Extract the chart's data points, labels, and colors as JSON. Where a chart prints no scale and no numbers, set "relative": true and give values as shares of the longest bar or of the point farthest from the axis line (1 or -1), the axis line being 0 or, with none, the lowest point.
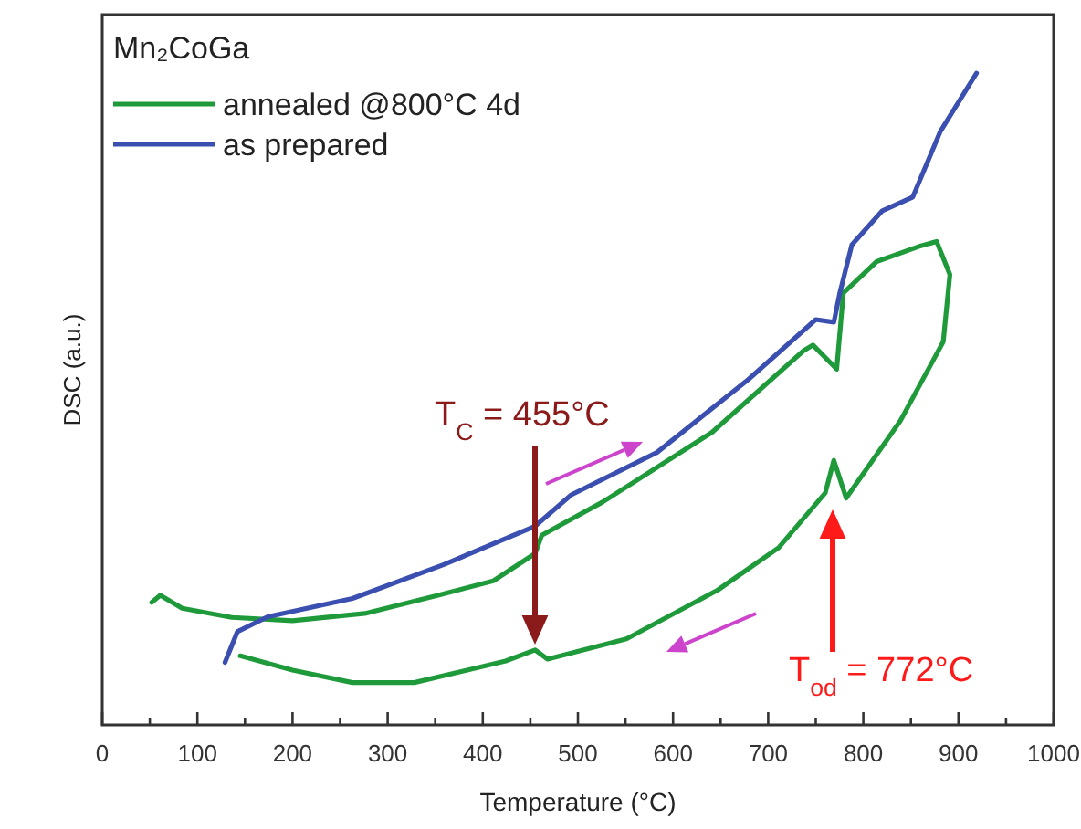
{
  "chart_data": {
    "type": "line",
    "relative": true,
    "xlabel": "Temperature (°C)",
    "ylabel": "DSC (a.u.)",
    "legend_title": "Mn₂CoGa",
    "legend": "top left",
    "grid": false,
    "line_style": "solid",
    "xlim": [
      0,
      1000
    ],
    "xticks": [
      0,
      {
        "value": 50,
        "label": null
      },
      100,
      {
        "value": 150,
        "label": null
      },
      200,
      {
        "value": 250,
        "label": null
      },
      300,
      {
        "value": 350,
        "label": null
      },
      400,
      {
        "value": 450,
        "label": null
      },
      500,
      {
        "value": 550,
        "label": null
      },
      600,
      {
        "value": 650,
        "label": null
      },
      700,
      {
        "value": 750,
        "label": null
      },
      800,
      {
        "value": 850,
        "label": null
      },
      900,
      {
        "value": 950,
        "label": null
      },
      1000
    ],
    "series": [
      {
        "name": "annealed @800°C 4d",
        "color": "#1f9a3a",
        "x": [
          52,
          61,
          84,
          136,
          200,
          276,
          353,
          411,
          455,
          462,
          526,
          641,
          737,
          747,
          772,
          779,
          814,
          858,
          877,
          891,
          884,
          839,
          782,
          769,
          760,
          711,
          647,
          551,
          468,
          455,
          424,
          328,
          263,
          200,
          145
        ],
        "values": [
          0.188,
          0.199,
          0.179,
          0.165,
          0.16,
          0.171,
          0.199,
          0.221,
          0.263,
          0.291,
          0.342,
          0.449,
          0.574,
          0.583,
          0.546,
          0.663,
          0.711,
          0.734,
          0.742,
          0.691,
          0.588,
          0.467,
          0.348,
          0.406,
          0.356,
          0.272,
          0.207,
          0.132,
          0.101,
          0.115,
          0.098,
          0.065,
          0.065,
          0.084,
          0.106
        ]
      },
      {
        "name": "as prepared",
        "color": "#3a4fb0",
        "x": [
          129,
          142,
          174,
          263,
          359,
          455,
          493,
          583,
          679,
          750,
          769,
          775,
          788,
          820,
          852,
          881,
          919
        ],
        "values": [
          0.096,
          0.143,
          0.166,
          0.194,
          0.246,
          0.305,
          0.353,
          0.418,
          0.53,
          0.622,
          0.618,
          0.661,
          0.737,
          0.789,
          0.81,
          0.911,
          1.0
        ]
      }
    ],
    "annotations": [
      "T$_{C}$ = 455°C",
      "T$_{od}$ = 772°C"
    ]
  }
}
